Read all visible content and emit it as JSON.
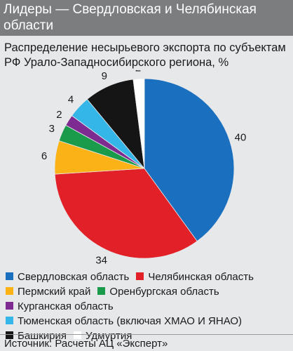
{
  "header": {
    "title": "Лидеры — Свердловская и Челябинская области"
  },
  "subtitle": "Распределение несырьевого экспорта по субъектам РФ Урало-Западносибирского региона, %",
  "source": "Источник: Расчеты АЦ «Эксперт»",
  "chart_data": {
    "type": "pie",
    "start_angle_deg": 0,
    "direction": "clockwise",
    "slices": [
      {
        "label": "Свердловская область",
        "value": 40,
        "color": "#1a6fbf"
      },
      {
        "label": "Челябинская область",
        "value": 34,
        "color": "#e12127"
      },
      {
        "label": "Пермский край",
        "value": 6,
        "color": "#fbb216"
      },
      {
        "label": "Оренбургская область",
        "value": 3,
        "color": "#1a9a4b"
      },
      {
        "label": "Курганская область",
        "value": 2,
        "color": "#7d2b90"
      },
      {
        "label": "Тюменская область (включая ХМАО И ЯНАО)",
        "value": 4,
        "color": "#34b6e8"
      },
      {
        "label": "Башкирия",
        "value": 9,
        "color": "#151515"
      },
      {
        "label": "Удмуртия",
        "value": 2,
        "color": "#ffffff"
      }
    ]
  }
}
